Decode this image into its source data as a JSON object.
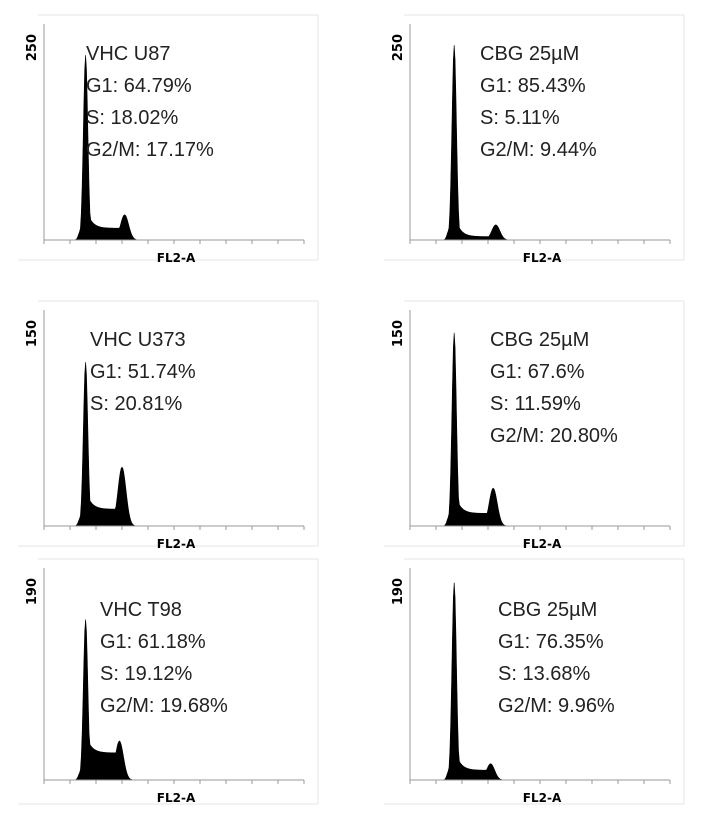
{
  "chart_data": [
    {
      "type": "area",
      "subtype": "histogram",
      "ymax_label": "250",
      "xlabel": "FL2-A",
      "ylim": [
        0,
        250
      ],
      "annotations": [
        "VHC U87",
        "G1: 64.79%",
        "S: 18.02%",
        "G2/M: 17.17%"
      ],
      "peaks": {
        "g1_height": 220,
        "g1_pos": 0.16,
        "g2_height": 30,
        "g2_pos": 0.31,
        "s_level": 14
      },
      "fill": "#000000"
    },
    {
      "type": "area",
      "subtype": "histogram",
      "ymax_label": "250",
      "xlabel": "FL2-A",
      "ylim": [
        0,
        250
      ],
      "annotations": [
        "CBG 25µM",
        "G1: 85.43%",
        "S: 5.11%",
        "G2/M: 9.44%"
      ],
      "peaks": {
        "g1_height": 232,
        "g1_pos": 0.17,
        "g2_height": 18,
        "g2_pos": 0.33,
        "s_level": 4
      },
      "fill": "#000000"
    },
    {
      "type": "area",
      "subtype": "histogram",
      "ymax_label": "150",
      "xlabel": "FL2-A",
      "ylim": [
        0,
        150
      ],
      "annotations": [
        "VHC  U373",
        "G1: 51.74%",
        "S: 20.81%"
      ],
      "peaks": {
        "g1_height": 117,
        "g1_pos": 0.16,
        "g2_height": 42,
        "g2_pos": 0.3,
        "s_level": 12
      },
      "fill": "#000000"
    },
    {
      "type": "area",
      "subtype": "histogram",
      "ymax_label": "150",
      "xlabel": "FL2-A",
      "ylim": [
        0,
        150
      ],
      "annotations": [
        "CBG 25µM",
        "G1: 67.6%",
        "S: 11.59%",
        "G2/M: 20.80%"
      ],
      "peaks": {
        "g1_height": 138,
        "g1_pos": 0.17,
        "g2_height": 27,
        "g2_pos": 0.32,
        "s_level": 9
      },
      "fill": "#000000"
    },
    {
      "type": "area",
      "subtype": "histogram",
      "ymax_label": "190",
      "xlabel": "FL2-A",
      "ylim": [
        0,
        190
      ],
      "annotations": [
        "VHC T98",
        "G1: 61.18%",
        "S: 19.12%",
        "G2/M: 19.68%"
      ],
      "peaks": {
        "g1_height": 148,
        "g1_pos": 0.16,
        "g2_height": 36,
        "g2_pos": 0.29,
        "s_level": 25
      },
      "fill": "#000000"
    },
    {
      "type": "area",
      "subtype": "histogram",
      "ymax_label": "190",
      "xlabel": "FL2-A",
      "ylim": [
        0,
        190
      ],
      "annotations": [
        "CBG 25µM",
        "G1: 76.35%",
        "S: 13.68%",
        "G2/M: 9.96%"
      ],
      "peaks": {
        "g1_height": 182,
        "g1_pos": 0.17,
        "g2_height": 15,
        "g2_pos": 0.31,
        "s_level": 9
      },
      "fill": "#000000"
    }
  ]
}
